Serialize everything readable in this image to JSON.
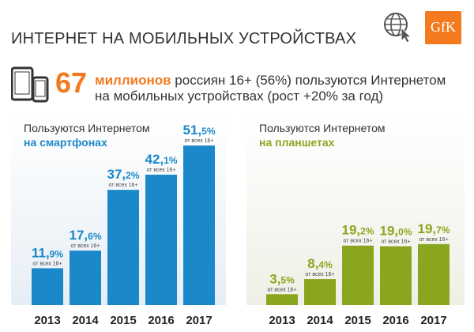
{
  "header": {
    "title": "ИНТЕРНЕТ НА МОБИЛЬНЫХ УСТРОЙСТВАХ",
    "logo_text": "GfK",
    "globe_icon": "globe-cursor-icon",
    "colors": {
      "orange": "#f47a20",
      "blue": "#1b88c9",
      "olive": "#8aa51e"
    }
  },
  "headline": {
    "number": "67",
    "unit": "миллионов",
    "line1_rest": " россиян 16+ (56%) пользуются Интернетом",
    "line2": "на мобильных устройствах (рост +20% за год)"
  },
  "chart_data": [
    {
      "type": "bar",
      "title": "Пользуются Интернетом",
      "subtitle": "на смартфонах",
      "categories": [
        "2013",
        "2014",
        "2015",
        "2016",
        "2017"
      ],
      "values": [
        11.9,
        17.6,
        37.2,
        42.1,
        51.5
      ],
      "value_labels": [
        {
          "int": "11,",
          "dec": "9%"
        },
        {
          "int": "17,",
          "dec": "6%"
        },
        {
          "int": "37,",
          "dec": "2%"
        },
        {
          "int": "42,",
          "dec": "1%"
        },
        {
          "int": "51,",
          "dec": "5%"
        }
      ],
      "note": "от всех 16+",
      "color": "#1b88c9"
    },
    {
      "type": "bar",
      "title": "Пользуются Интернетом",
      "subtitle": "на планшетах",
      "categories": [
        "2013",
        "2014",
        "2015",
        "2016",
        "2017"
      ],
      "values": [
        3.5,
        8.4,
        19.2,
        19.0,
        19.7
      ],
      "value_labels": [
        {
          "int": "3,",
          "dec": "5%"
        },
        {
          "int": "8,",
          "dec": "4%"
        },
        {
          "int": "19,",
          "dec": "2%"
        },
        {
          "int": "19,",
          "dec": "0%"
        },
        {
          "int": "19,",
          "dec": "7%"
        }
      ],
      "note": "от всех 16+",
      "color": "#8aa51e"
    }
  ]
}
